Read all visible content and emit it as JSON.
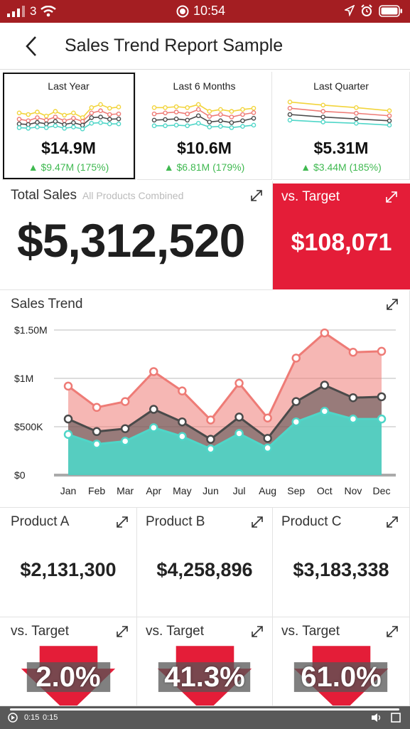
{
  "status_bar": {
    "carrier": "3",
    "time": "10:54"
  },
  "header": {
    "title": "Sales Trend Report Sample"
  },
  "periods": [
    {
      "label": "Last Year",
      "value": "$14.9M",
      "delta": "$9.47M (175%)"
    },
    {
      "label": "Last 6 Months",
      "value": "$10.6M",
      "delta": "$6.81M (179%)"
    },
    {
      "label": "Last Quarter",
      "value": "$5.31M",
      "delta": "$3.44M (185%)"
    }
  ],
  "total": {
    "title": "Total Sales",
    "subtitle": "All Products Combined",
    "value": "$5,312,520"
  },
  "vs_target": {
    "title": "vs. Target",
    "value": "$108,071"
  },
  "trend_title": "Sales Trend",
  "products": [
    {
      "name": "Product A",
      "value": "$2,131,300"
    },
    {
      "name": "Product B",
      "value": "$4,258,896"
    },
    {
      "name": "Product C",
      "value": "$3,183,338"
    }
  ],
  "product_targets": [
    {
      "label": "vs. Target",
      "pct": "2.0%"
    },
    {
      "label": "vs. Target",
      "pct": "41.3%"
    },
    {
      "label": "vs. Target",
      "pct": "61.0%"
    }
  ],
  "video": {
    "elapsed": "0:15",
    "total": "0:15"
  },
  "colors": {
    "status_bar": "#a41e22",
    "target_red": "#e41d38",
    "positive_green": "#3fb950",
    "teal": "#4fd6c8",
    "dark": "#4a4a4a",
    "salmon": "#ee7b76"
  },
  "chart_data": {
    "type": "area",
    "title": "Sales Trend",
    "categories": [
      "Jan",
      "Feb",
      "Mar",
      "Apr",
      "May",
      "Jun",
      "Jul",
      "Aug",
      "Sep",
      "Oct",
      "Nov",
      "Dec"
    ],
    "ytick_labels": [
      "$0",
      "$500K",
      "$1M",
      "$1.50M"
    ],
    "ylim": [
      0,
      1500000
    ],
    "stacked": false,
    "series": [
      {
        "values": [
          920000,
          700000,
          760000,
          1070000,
          870000,
          570000,
          950000,
          590000,
          1210000,
          1470000,
          1270000,
          1280000
        ],
        "color": "#ee7b76"
      },
      {
        "values": [
          580000,
          450000,
          480000,
          680000,
          550000,
          370000,
          600000,
          380000,
          760000,
          930000,
          800000,
          810000
        ],
        "color": "#4a4a4a"
      },
      {
        "values": [
          420000,
          320000,
          350000,
          490000,
          400000,
          270000,
          430000,
          280000,
          550000,
          660000,
          580000,
          580000
        ],
        "color": "#4fd6c8"
      }
    ],
    "grid": true
  },
  "sparklines": [
    {
      "series": [
        [
          0.55,
          0.5,
          0.58,
          0.45,
          0.6,
          0.48,
          0.55,
          0.4,
          0.72,
          0.82,
          0.7,
          0.74
        ],
        [
          0.35,
          0.3,
          0.4,
          0.32,
          0.42,
          0.3,
          0.38,
          0.28,
          0.55,
          0.62,
          0.5,
          0.52
        ],
        [
          0.2,
          0.18,
          0.25,
          0.2,
          0.28,
          0.18,
          0.24,
          0.16,
          0.4,
          0.42,
          0.35,
          0.36
        ],
        [
          0.08,
          0.06,
          0.1,
          0.08,
          0.14,
          0.06,
          0.1,
          0.04,
          0.22,
          0.24,
          0.2,
          0.2
        ]
      ]
    },
    {
      "series": [
        [
          0.72,
          0.72,
          0.75,
          0.72,
          0.82,
          0.6,
          0.66,
          0.6,
          0.66,
          0.7
        ],
        [
          0.52,
          0.55,
          0.58,
          0.52,
          0.66,
          0.44,
          0.5,
          0.42,
          0.5,
          0.56
        ],
        [
          0.32,
          0.34,
          0.36,
          0.32,
          0.46,
          0.26,
          0.3,
          0.24,
          0.3,
          0.38
        ],
        [
          0.14,
          0.14,
          0.16,
          0.14,
          0.22,
          0.1,
          0.12,
          0.08,
          0.12,
          0.16
        ]
      ]
    },
    {
      "series": [
        [
          0.9,
          0.8,
          0.72,
          0.62
        ],
        [
          0.7,
          0.6,
          0.54,
          0.46
        ],
        [
          0.5,
          0.42,
          0.36,
          0.3
        ],
        [
          0.32,
          0.26,
          0.22,
          0.16
        ]
      ]
    }
  ]
}
